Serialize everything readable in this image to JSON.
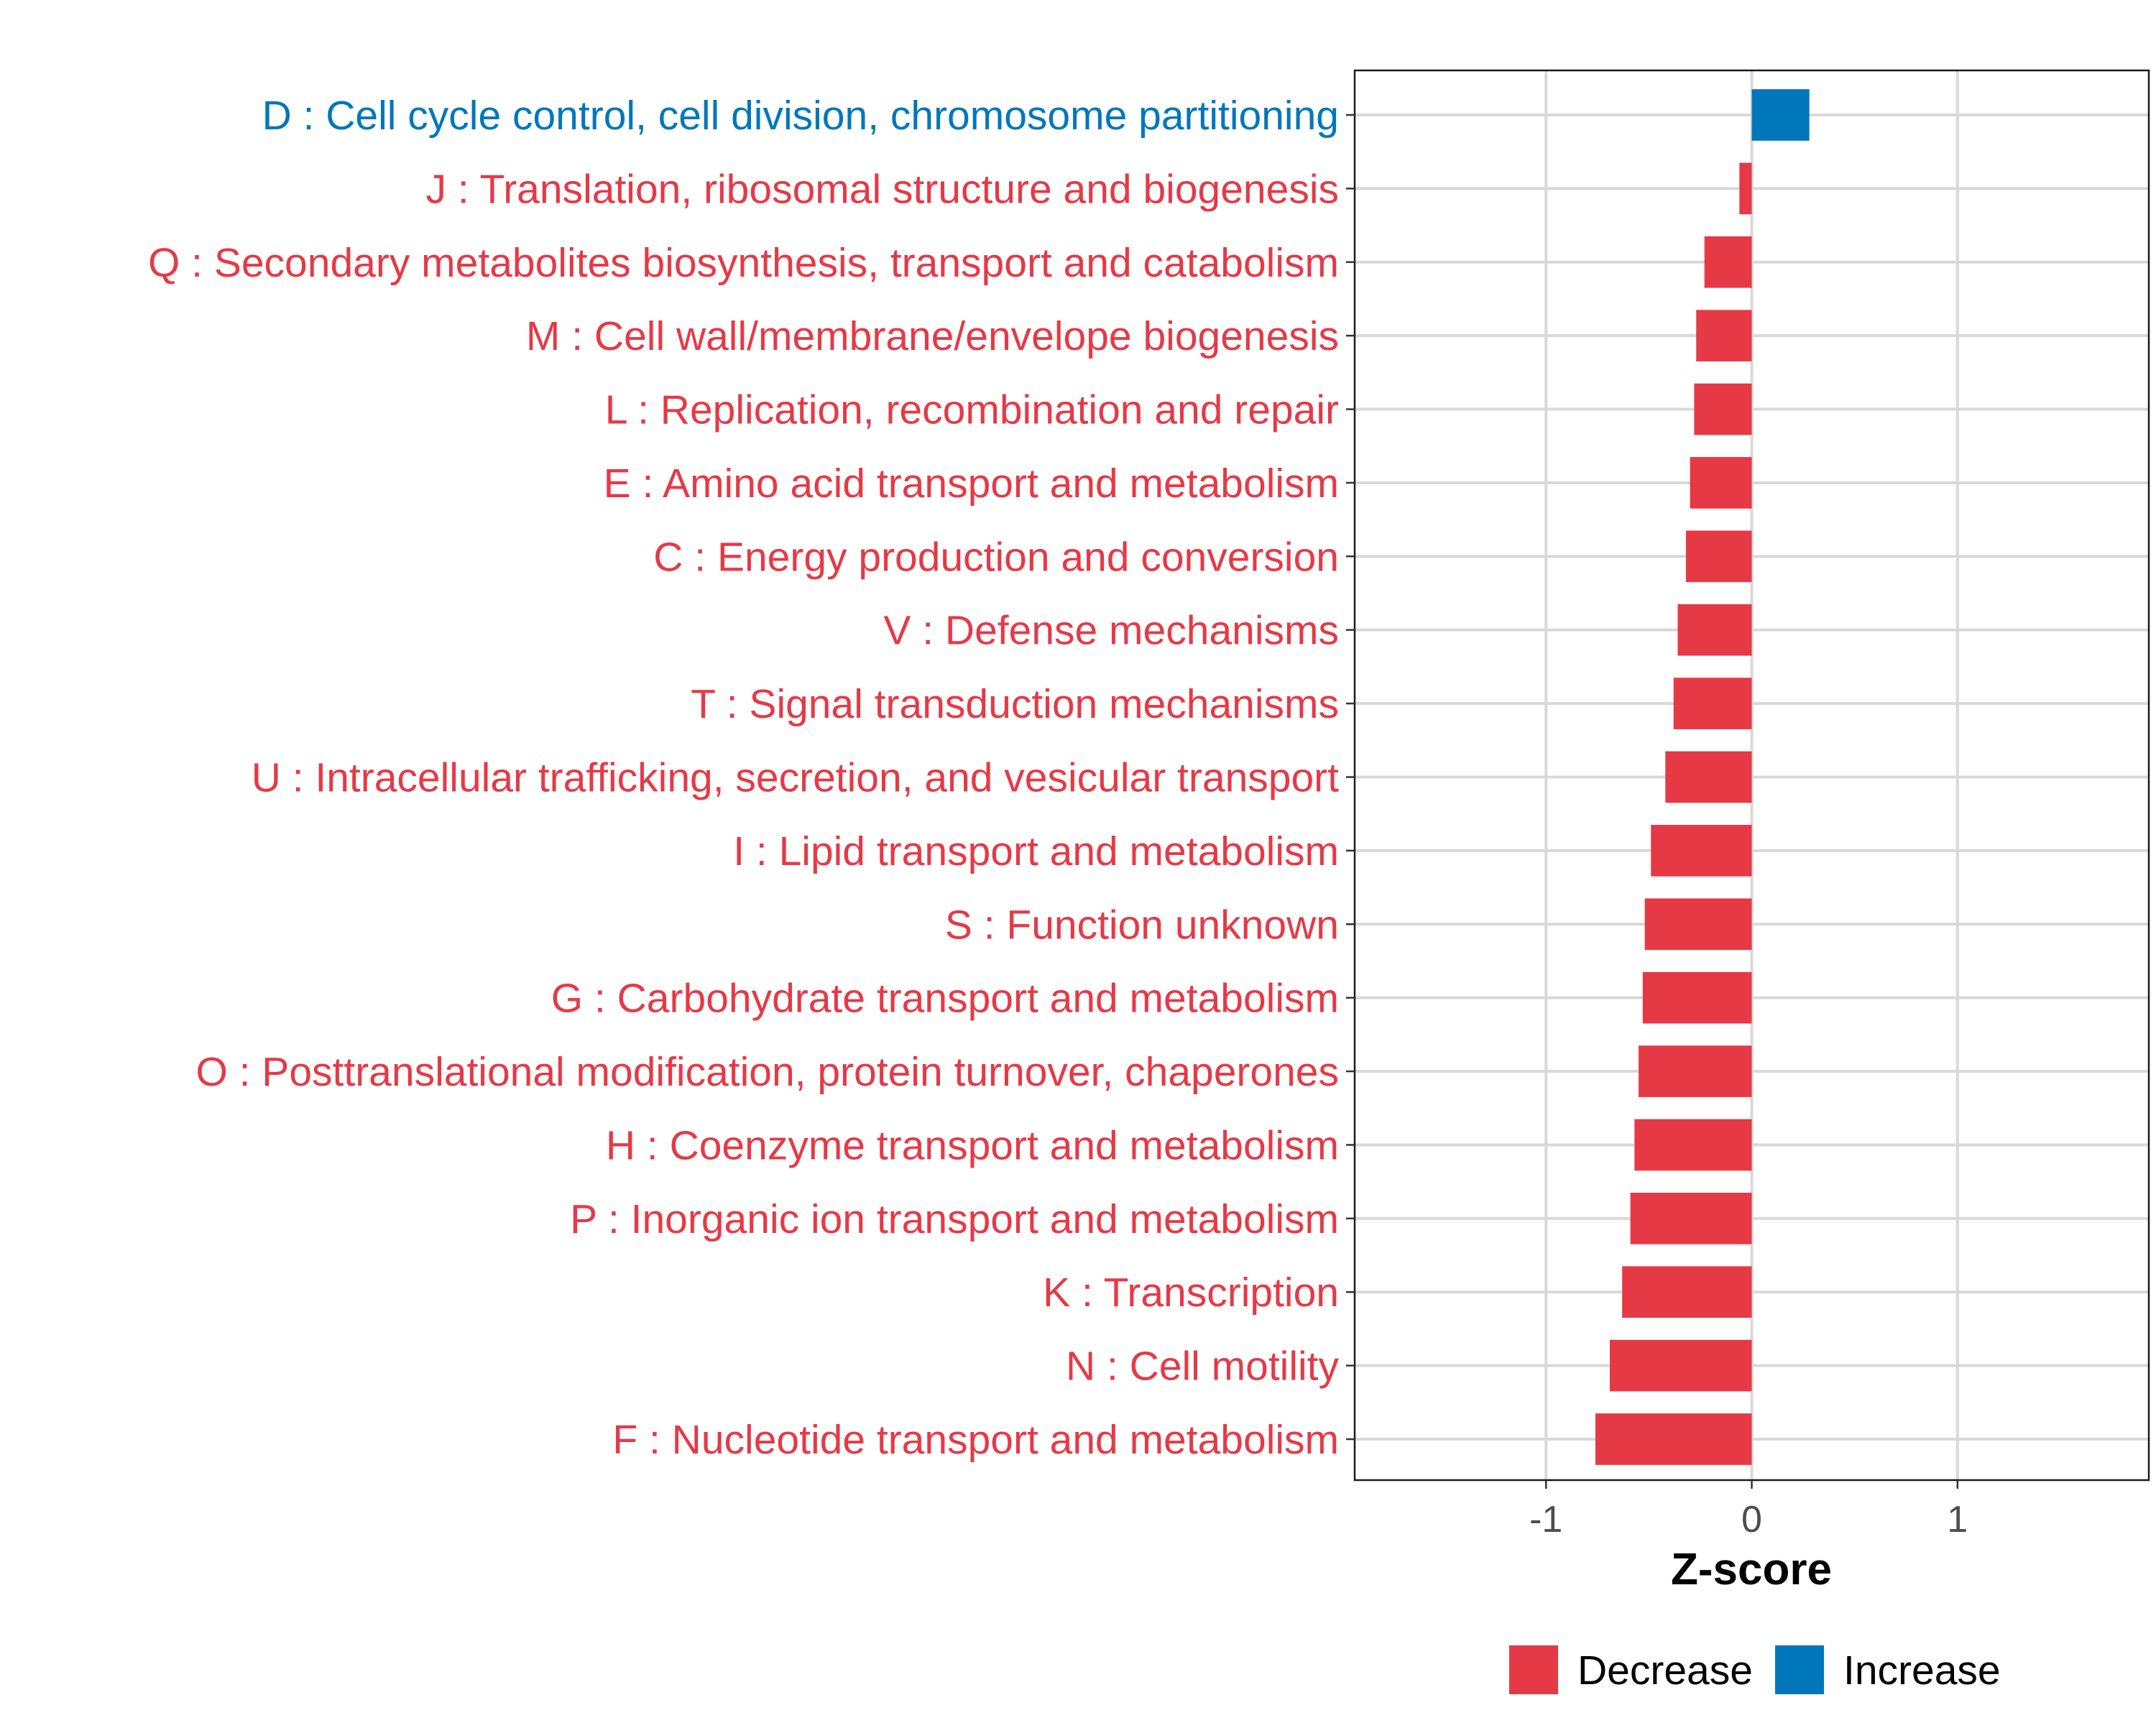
{
  "chart_data": {
    "type": "bar",
    "orientation": "horizontal",
    "xlabel": "Z-score",
    "xlim": [
      -1.93,
      1.93
    ],
    "xticks": [
      -1,
      0,
      1
    ],
    "xtick_labels": [
      "-1",
      "0",
      "1"
    ],
    "grid": true,
    "legend_position": "bottom",
    "colors": {
      "Decrease": "#E63946",
      "Increase": "#0077BB"
    },
    "legend": [
      {
        "label": "Decrease",
        "color": "#E63946"
      },
      {
        "label": "Increase",
        "color": "#0077BB"
      }
    ],
    "categories": [
      "D : Cell cycle control, cell division, chromosome partitioning",
      "J : Translation, ribosomal structure and biogenesis",
      "Q : Secondary metabolites biosynthesis, transport and catabolism",
      "M : Cell wall/membrane/envelope biogenesis",
      "L : Replication, recombination and repair",
      "E : Amino acid transport and metabolism",
      "C : Energy production and conversion",
      "V : Defense mechanisms",
      "T : Signal transduction mechanisms",
      "U : Intracellular trafficking, secretion, and vesicular transport",
      "I : Lipid transport and metabolism",
      "S : Function unknown",
      "G : Carbohydrate transport and metabolism",
      "O : Posttranslational modification, protein turnover, chaperones",
      "H : Coenzyme transport and metabolism",
      "P : Inorganic ion transport and metabolism",
      "K : Transcription",
      "N : Cell motility",
      "F : Nucleotide transport and metabolism"
    ],
    "values": [
      0.28,
      -0.06,
      -0.23,
      -0.27,
      -0.28,
      -0.3,
      -0.32,
      -0.36,
      -0.38,
      -0.42,
      -0.49,
      -0.52,
      -0.53,
      -0.55,
      -0.57,
      -0.59,
      -0.63,
      -0.69,
      -0.76
    ],
    "direction": [
      "Increase",
      "Decrease",
      "Decrease",
      "Decrease",
      "Decrease",
      "Decrease",
      "Decrease",
      "Decrease",
      "Decrease",
      "Decrease",
      "Decrease",
      "Decrease",
      "Decrease",
      "Decrease",
      "Decrease",
      "Decrease",
      "Decrease",
      "Decrease",
      "Decrease"
    ]
  }
}
